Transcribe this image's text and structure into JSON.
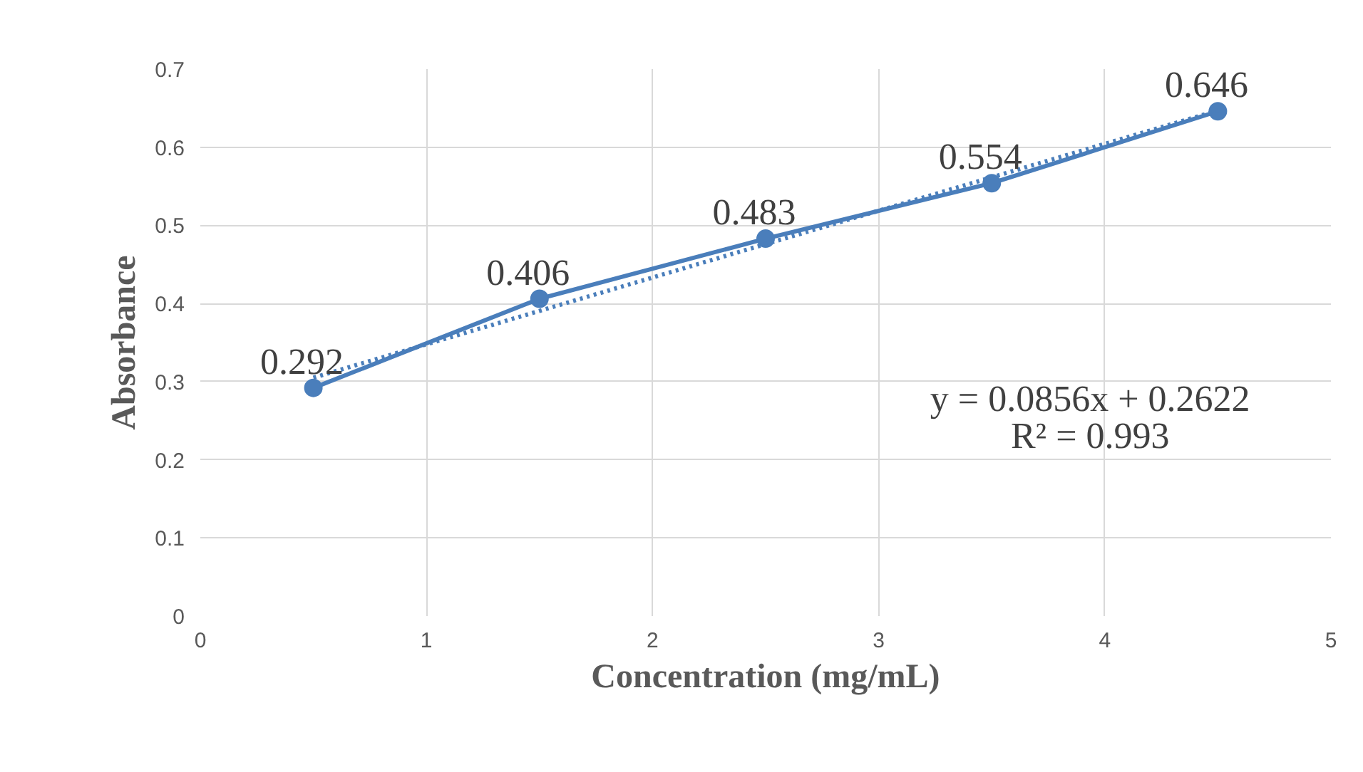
{
  "chart_data": {
    "type": "line",
    "xlabel": "Concentration (mg/mL)",
    "ylabel": "Absorbance",
    "xlim": [
      0,
      5
    ],
    "xticks": [
      0,
      1,
      2,
      3,
      4,
      5
    ],
    "ylim": [
      0,
      0.7
    ],
    "yticks": [
      0,
      0.1,
      0.2,
      0.3,
      0.4,
      0.5,
      0.6,
      0.7
    ],
    "grid": true,
    "x": [
      0.5,
      1.5,
      2.5,
      3.5,
      4.5
    ],
    "series": [
      {
        "color": "#4a7ebb",
        "values": [
          0.292,
          0.406,
          0.483,
          0.554,
          0.646
        ],
        "marker": "circle",
        "line_style": "solid",
        "value_labels": [
          "0.292",
          "0.406",
          "0.483",
          "0.554",
          "0.646"
        ]
      },
      {
        "color": "#4a7ebb",
        "x": [
          0.5,
          4.5
        ],
        "values": [
          0.305,
          0.647
        ],
        "line_style": "dotted"
      }
    ],
    "annotations": [
      "y = 0.0856x + 0.2622",
      "R² = 0.993"
    ]
  }
}
